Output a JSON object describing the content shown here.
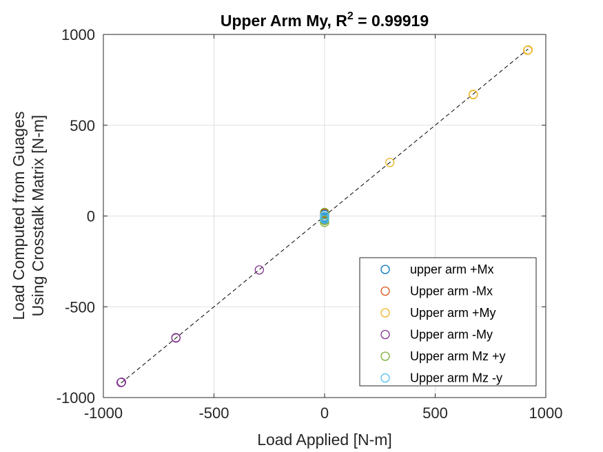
{
  "chart_data": {
    "type": "scatter",
    "title": {
      "prefix": "Upper Arm My, R",
      "superscript": "2",
      "suffix": " = 0.99919"
    },
    "xlabel": "Load Applied [N-m]",
    "ylabel": [
      "Load Computed from Guages",
      "Using Crosstalk Matrix [N-m]"
    ],
    "xlim": [
      -1000,
      1000
    ],
    "ylim": [
      -1000,
      1000
    ],
    "xticks": [
      -1000,
      -500,
      0,
      500,
      1000
    ],
    "yticks": [
      -1000,
      -500,
      0,
      500,
      1000
    ],
    "xtick_labels": [
      "-1000",
      "-500",
      "0",
      "500",
      "1000"
    ],
    "ytick_labels": [
      "-1000",
      "-500",
      "0",
      "500",
      "1000"
    ],
    "grid": true,
    "legend_position": "bottom-right",
    "reference_line": {
      "style": "dashed",
      "color": "#000000",
      "x": [
        -920,
        920
      ],
      "y": [
        -920,
        920
      ]
    },
    "series": [
      {
        "name": "upper arm +Mx",
        "color": "#0072BD",
        "x": [
          0,
          0,
          0
        ],
        "y": [
          10,
          -5,
          -15
        ]
      },
      {
        "name": "Upper arm -Mx",
        "color": "#D95319",
        "x": [
          0,
          0,
          0
        ],
        "y": [
          15,
          5,
          -20
        ]
      },
      {
        "name": "Upper arm +My",
        "color": "#EDB120",
        "x": [
          295,
          672,
          672,
          918,
          920
        ],
        "y": [
          295,
          670,
          668,
          913,
          915
        ]
      },
      {
        "name": "Upper arm -My",
        "color": "#7E2F8E",
        "x": [
          -295,
          -672,
          -672,
          -918,
          -920
        ],
        "y": [
          -297,
          -670,
          -672,
          -915,
          -917
        ]
      },
      {
        "name": "Upper arm Mz +y",
        "color": "#77AC30",
        "x": [
          0,
          0,
          0
        ],
        "y": [
          20,
          -25,
          -35
        ]
      },
      {
        "name": "Upper arm Mz -y",
        "color": "#4DBEEE",
        "x": [
          0,
          0,
          0
        ],
        "y": [
          5,
          -10,
          -18
        ]
      }
    ]
  }
}
